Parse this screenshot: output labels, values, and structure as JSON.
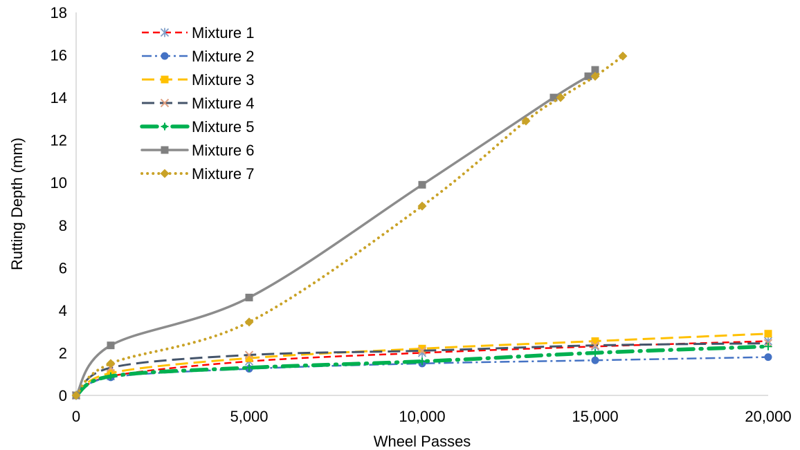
{
  "chart_data": {
    "type": "line",
    "title": "",
    "xlabel": "Wheel Passes",
    "ylabel": "Rutting Depth (mm)",
    "xlim": [
      0,
      20000
    ],
    "ylim": [
      0,
      18
    ],
    "x_ticks": [
      0,
      5000,
      10000,
      15000,
      20000
    ],
    "x_tick_labels": [
      "0",
      "5,000",
      "10,000",
      "15,000",
      "20,000"
    ],
    "y_ticks": [
      0,
      2,
      4,
      6,
      8,
      10,
      12,
      14,
      16,
      18
    ],
    "y_tick_labels": [
      "0",
      "2",
      "4",
      "6",
      "8",
      "10",
      "12",
      "14",
      "16",
      "18"
    ],
    "grid": false,
    "legend_position": "top-left",
    "series": [
      {
        "name": "Mixture 1",
        "color": "#ff0000",
        "marker_color": "#7f9ec8",
        "dash": "dash",
        "marker": "asterisk",
        "points": [
          [
            0,
            0
          ],
          [
            1000,
            0.9
          ],
          [
            5000,
            1.6
          ],
          [
            10000,
            2.0
          ],
          [
            15000,
            2.3
          ],
          [
            20000,
            2.55
          ]
        ]
      },
      {
        "name": "Mixture 2",
        "color": "#4472c4",
        "marker_color": "#4472c4",
        "dash": "dashdot",
        "marker": "circle",
        "points": [
          [
            0,
            0
          ],
          [
            1000,
            0.85
          ],
          [
            5000,
            1.25
          ],
          [
            10000,
            1.5
          ],
          [
            15000,
            1.65
          ],
          [
            20000,
            1.8
          ]
        ]
      },
      {
        "name": "Mixture 3",
        "color": "#ffc000",
        "marker_color": "#ffc000",
        "dash": "longdash",
        "marker": "square",
        "points": [
          [
            0,
            0
          ],
          [
            1000,
            1.05
          ],
          [
            5000,
            1.75
          ],
          [
            10000,
            2.2
          ],
          [
            15000,
            2.55
          ],
          [
            20000,
            2.9
          ]
        ]
      },
      {
        "name": "Mixture 4",
        "color": "#44546a",
        "marker_color": "#e0a080",
        "dash": "longdash",
        "marker": "x",
        "points": [
          [
            0,
            0
          ],
          [
            1000,
            1.3
          ],
          [
            5000,
            1.9
          ],
          [
            10000,
            2.1
          ],
          [
            15000,
            2.35
          ],
          [
            20000,
            2.45
          ]
        ]
      },
      {
        "name": "Mixture 5",
        "color": "#00b050",
        "marker_color": "#00b050",
        "dash": "thickdashdot",
        "marker": "plus",
        "points": [
          [
            0,
            0
          ],
          [
            1000,
            0.9
          ],
          [
            5000,
            1.3
          ],
          [
            10000,
            1.6
          ],
          [
            15000,
            2.0
          ],
          [
            20000,
            2.3
          ]
        ]
      },
      {
        "name": "Mixture 6",
        "color": "#8c8c8c",
        "marker_color": "#808080",
        "dash": "solid",
        "marker": "square",
        "points": [
          [
            0,
            0
          ],
          [
            1000,
            2.35
          ],
          [
            5000,
            4.6
          ],
          [
            10000,
            9.9
          ],
          [
            13800,
            14.0
          ],
          [
            14800,
            15.0
          ],
          [
            15000,
            15.3
          ]
        ]
      },
      {
        "name": "Mixture 7",
        "color": "#c9a227",
        "marker_color": "#c9a227",
        "dash": "dot",
        "marker": "diamond",
        "points": [
          [
            0,
            0
          ],
          [
            1000,
            1.5
          ],
          [
            5000,
            3.45
          ],
          [
            10000,
            8.9
          ],
          [
            13000,
            12.9
          ],
          [
            14000,
            14.0
          ],
          [
            15000,
            15.0
          ],
          [
            15800,
            15.95
          ]
        ]
      }
    ]
  }
}
